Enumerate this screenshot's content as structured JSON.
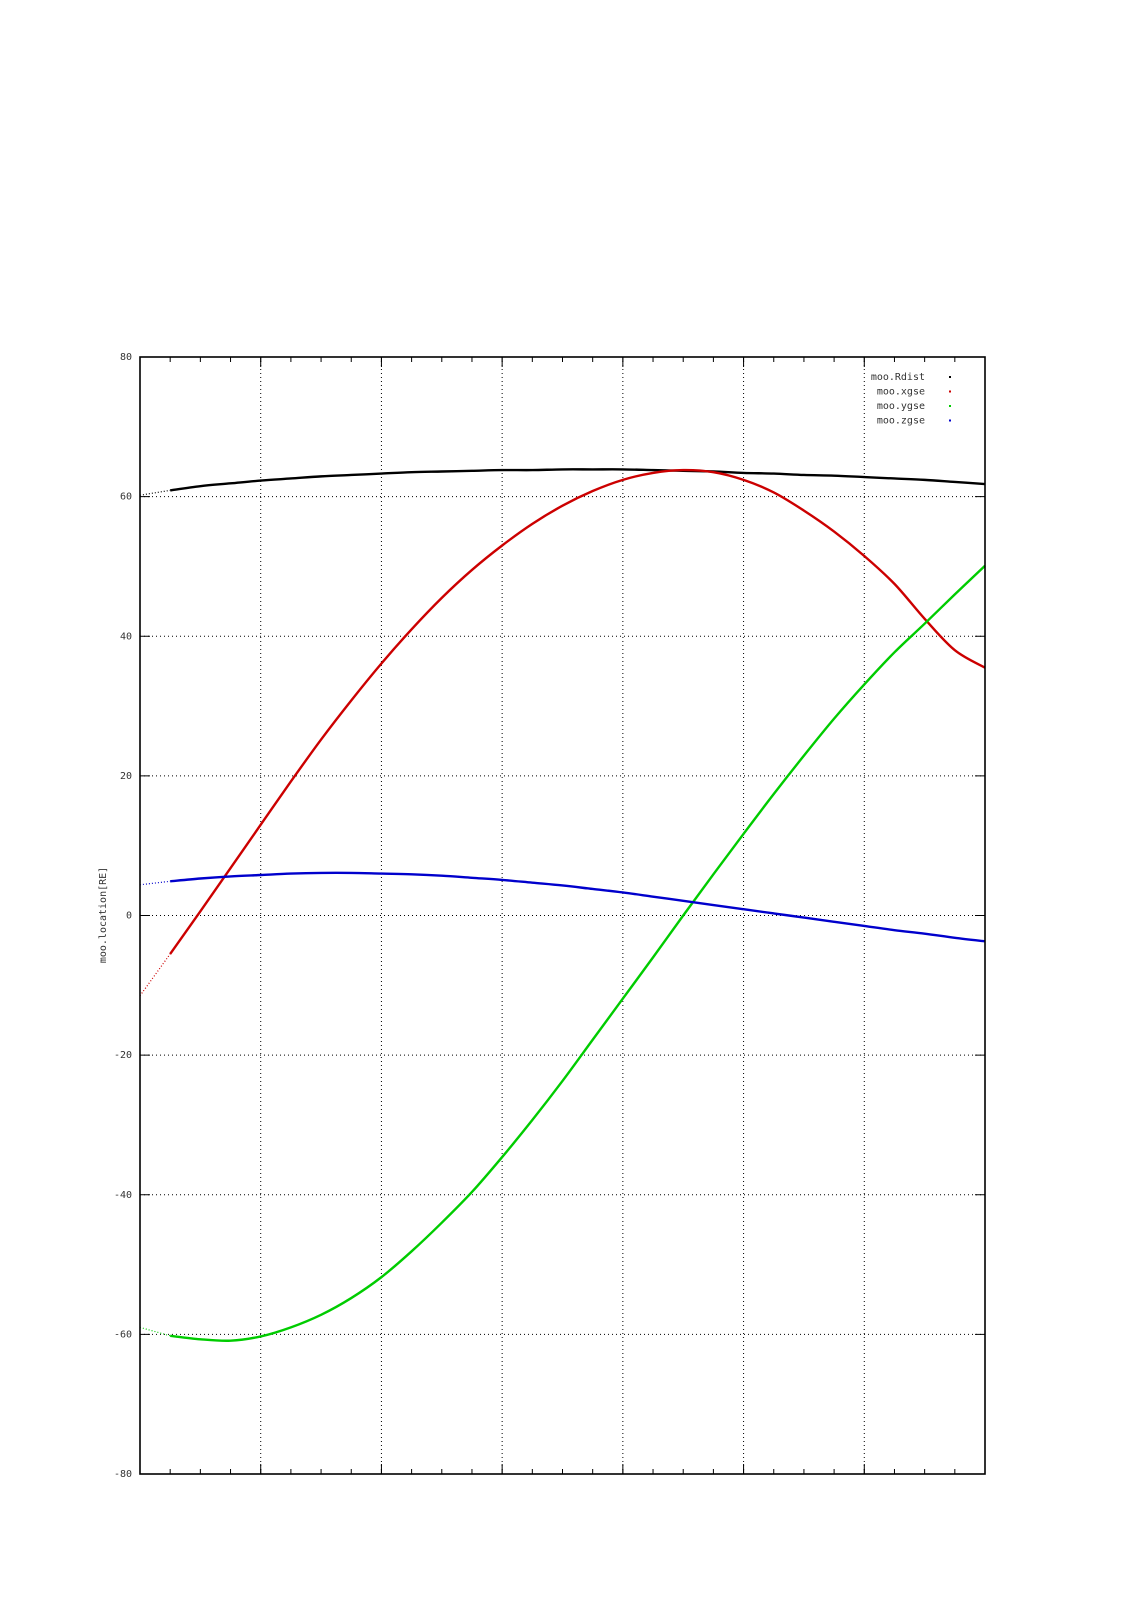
{
  "chart_data": {
    "type": "line",
    "title": "",
    "xlabel": "",
    "ylabel": "moo.location[RE]",
    "ylim": [
      -80,
      80
    ],
    "xlim": [
      0,
      28
    ],
    "yticks": [
      -80,
      -60,
      -40,
      -20,
      0,
      20,
      40,
      60,
      80
    ],
    "xgrid": [
      4,
      8,
      12,
      16,
      20,
      24
    ],
    "xminor": [
      1,
      2,
      3,
      4,
      5,
      6,
      7,
      8,
      9,
      10,
      11,
      12,
      13,
      14,
      15,
      16,
      17,
      18,
      19,
      20,
      21,
      22,
      23,
      24,
      25,
      26,
      27
    ],
    "grid": true,
    "legend_position": "top-right",
    "x": [
      0,
      1,
      2,
      3,
      4,
      5,
      6,
      7,
      8,
      9,
      10,
      11,
      12,
      13,
      14,
      15,
      16,
      17,
      18,
      19,
      20,
      21,
      22,
      23,
      24,
      25,
      26,
      27,
      28
    ],
    "series": [
      {
        "name": "moo.Rdist",
        "color": "#000000",
        "values": [
          60.2,
          60.9,
          61.5,
          61.9,
          62.3,
          62.6,
          62.9,
          63.1,
          63.3,
          63.5,
          63.6,
          63.7,
          63.8,
          63.8,
          63.9,
          63.9,
          63.9,
          63.8,
          63.7,
          63.6,
          63.4,
          63.3,
          63.1,
          63.0,
          62.8,
          62.6,
          62.4,
          62.1,
          61.8
        ]
      },
      {
        "name": "moo.xgse",
        "color": "#cc0000",
        "values": [
          -11.5,
          -5.5,
          0.6,
          6.8,
          13.0,
          19.2,
          25.2,
          30.8,
          36.1,
          41.0,
          45.5,
          49.5,
          53.0,
          56.1,
          58.7,
          60.8,
          62.4,
          63.4,
          63.8,
          63.5,
          62.4,
          60.6,
          58.0,
          55.0,
          51.5,
          47.5,
          42.5,
          38.0,
          35.5
        ]
      },
      {
        "name": "moo.ygse",
        "color": "#00cc00",
        "values": [
          -59.0,
          -60.2,
          -60.7,
          -60.9,
          -60.3,
          -59.0,
          -57.2,
          -54.8,
          -51.8,
          -48.1,
          -44.0,
          -39.6,
          -34.6,
          -29.3,
          -23.7,
          -17.8,
          -11.9,
          -6.0,
          0.0,
          5.9,
          11.7,
          17.4,
          22.9,
          28.2,
          33.1,
          37.7,
          41.8,
          46.0,
          50.1
        ]
      },
      {
        "name": "moo.zgse",
        "color": "#0000cc",
        "values": [
          4.4,
          4.9,
          5.3,
          5.6,
          5.8,
          6.0,
          6.1,
          6.1,
          6.0,
          5.9,
          5.7,
          5.4,
          5.1,
          4.7,
          4.3,
          3.8,
          3.3,
          2.7,
          2.1,
          1.5,
          0.9,
          0.3,
          -0.3,
          -0.9,
          -1.5,
          -2.1,
          -2.6,
          -3.2,
          -3.7
        ]
      }
    ]
  }
}
